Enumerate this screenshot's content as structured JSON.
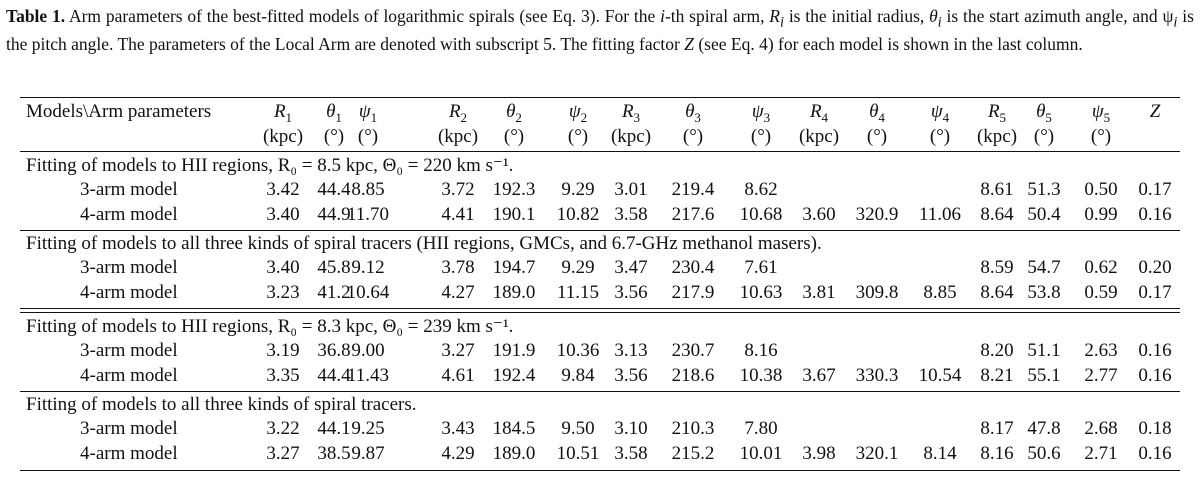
{
  "caption": {
    "label": "Table 1.",
    "text_a": "Arm parameters of the best-fitted models of logarithmic spirals (see Eq. 3). For the ",
    "ith": "i",
    "text_b": "-th spiral arm, ",
    "Ri": "R",
    "text_c": " is the initial radius, ",
    "thetai": "θ",
    "text_d": " is the start azimuth angle, and ",
    "psii": "ψ",
    "text_e": " is the pitch angle. The parameters of the Local Arm are denoted with subscript 5. The fitting factor ",
    "Z": "Z",
    "text_f": " (see Eq. 4) for each model is shown in the last column."
  },
  "header": {
    "corner": "Models\\Arm parameters",
    "columns": [
      {
        "sym": "R",
        "sub": "1",
        "unit": "(kpc)"
      },
      {
        "sym": "θ",
        "sub": "1",
        "unit": "(°)"
      },
      {
        "sym": "ψ",
        "sub": "1",
        "unit": "(°)"
      },
      {
        "sym": "R",
        "sub": "2",
        "unit": "(kpc)"
      },
      {
        "sym": "θ",
        "sub": "2",
        "unit": "(°)"
      },
      {
        "sym": "ψ",
        "sub": "2",
        "unit": "(°)"
      },
      {
        "sym": "R",
        "sub": "3",
        "unit": "(kpc)"
      },
      {
        "sym": "θ",
        "sub": "3",
        "unit": "(°)"
      },
      {
        "sym": "ψ",
        "sub": "3",
        "unit": "(°)"
      },
      {
        "sym": "R",
        "sub": "4",
        "unit": "(kpc)"
      },
      {
        "sym": "θ",
        "sub": "4",
        "unit": "(°)"
      },
      {
        "sym": "ψ",
        "sub": "4",
        "unit": "(°)"
      },
      {
        "sym": "R",
        "sub": "5",
        "unit": "(kpc)"
      },
      {
        "sym": "θ",
        "sub": "5",
        "unit": "(°)"
      },
      {
        "sym": "ψ",
        "sub": "5",
        "unit": "(°)"
      },
      {
        "sym": "Z",
        "sub": "",
        "unit": ""
      }
    ]
  },
  "sections": [
    {
      "title": "Fitting of models to HII regions, R₀ = 8.5 kpc, Θ₀ = 220 km s⁻¹.",
      "rows": [
        {
          "model": "3-arm model",
          "values": [
            "3.42",
            "44.4",
            "8.85",
            "3.72",
            "192.3",
            "9.29",
            "3.01",
            "219.4",
            "8.62",
            "",
            "",
            "",
            "8.61",
            "51.3",
            "0.50",
            "0.17"
          ]
        },
        {
          "model": "4-arm model",
          "values": [
            "3.40",
            "44.9",
            "11.70",
            "4.41",
            "190.1",
            "10.82",
            "3.58",
            "217.6",
            "10.68",
            "3.60",
            "320.9",
            "11.06",
            "8.64",
            "50.4",
            "0.99",
            "0.16"
          ]
        }
      ]
    },
    {
      "title": "Fitting of models to all three kinds of spiral tracers (HII regions, GMCs, and 6.7-GHz methanol masers).",
      "rows": [
        {
          "model": "3-arm model",
          "values": [
            "3.40",
            "45.8",
            "9.12",
            "3.78",
            "194.7",
            "9.29",
            "3.47",
            "230.4",
            "7.61",
            "",
            "",
            "",
            "8.59",
            "54.7",
            "0.62",
            "0.20"
          ]
        },
        {
          "model": "4-arm model",
          "values": [
            "3.23",
            "41.2",
            "10.64",
            "4.27",
            "189.0",
            "11.15",
            "3.56",
            "217.9",
            "10.63",
            "3.81",
            "309.8",
            "8.85",
            "8.64",
            "53.8",
            "0.59",
            "0.17"
          ]
        }
      ]
    },
    {
      "title": "Fitting of models to HII regions, R₀ = 8.3 kpc, Θ₀ = 239 km s⁻¹.",
      "rows": [
        {
          "model": "3-arm model",
          "values": [
            "3.19",
            "36.8",
            "9.00",
            "3.27",
            "191.9",
            "10.36",
            "3.13",
            "230.7",
            "8.16",
            "",
            "",
            "",
            "8.20",
            "51.1",
            "2.63",
            "0.16"
          ]
        },
        {
          "model": "4-arm model",
          "values": [
            "3.35",
            "44.4",
            "11.43",
            "4.61",
            "192.4",
            "9.84",
            "3.56",
            "218.6",
            "10.38",
            "3.67",
            "330.3",
            "10.54",
            "8.21",
            "55.1",
            "2.77",
            "0.16"
          ]
        }
      ]
    },
    {
      "title": "Fitting of models to all three kinds of spiral tracers.",
      "rows": [
        {
          "model": "3-arm model",
          "values": [
            "3.22",
            "44.1",
            "9.25",
            "3.43",
            "184.5",
            "9.50",
            "3.10",
            "210.3",
            "7.80",
            "",
            "",
            "",
            "8.17",
            "47.8",
            "2.68",
            "0.18"
          ]
        },
        {
          "model": "4-arm model",
          "values": [
            "3.27",
            "38.5",
            "9.87",
            "4.29",
            "189.0",
            "10.51",
            "3.58",
            "215.2",
            "10.01",
            "3.98",
            "320.1",
            "8.14",
            "8.16",
            "50.6",
            "2.71",
            "0.16"
          ]
        }
      ]
    }
  ]
}
